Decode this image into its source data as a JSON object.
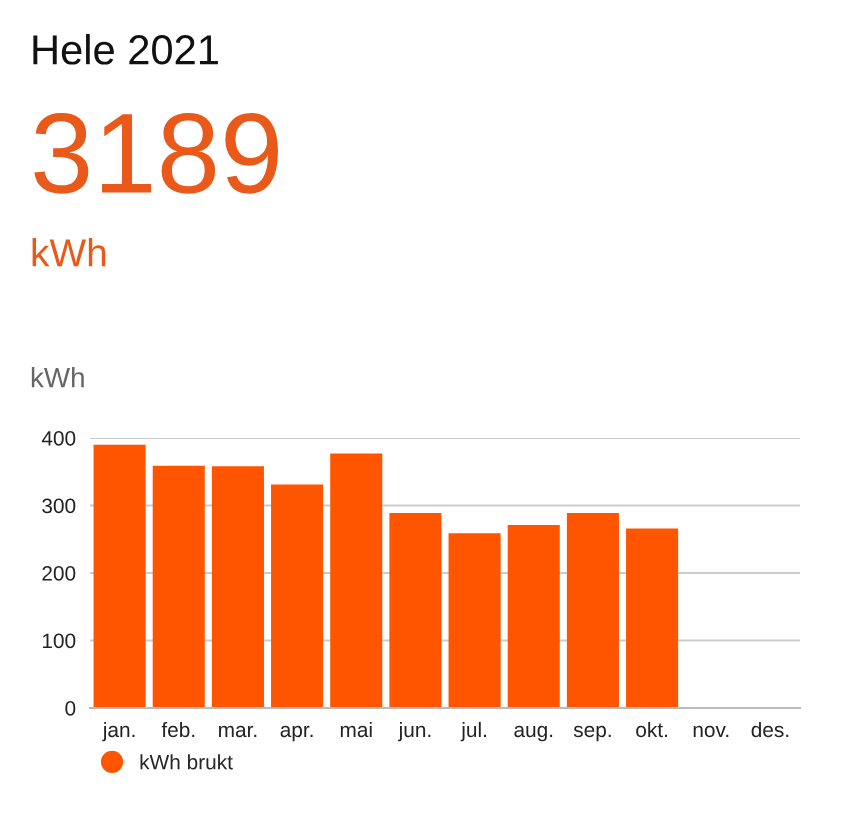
{
  "chart_data": {
    "type": "bar",
    "title": "Hele 2021",
    "annotations": [
      "3189",
      "kWh"
    ],
    "ylabel": "kWh",
    "categories": [
      "jan.",
      "feb.",
      "mar.",
      "apr.",
      "mai",
      "jun.",
      "jul.",
      "aug.",
      "sep.",
      "okt.",
      "nov.",
      "des."
    ],
    "series": [
      {
        "name": "kWh brukt",
        "color": "#ff5500",
        "values": [
          390,
          359,
          358,
          331,
          377,
          289,
          259,
          271,
          289,
          266,
          null,
          null
        ]
      }
    ],
    "ylim": [
      0,
      400
    ],
    "yticks": [
      0,
      100,
      200,
      300,
      400
    ],
    "grid": "y",
    "legend": "bottom left",
    "marker": "circle"
  }
}
